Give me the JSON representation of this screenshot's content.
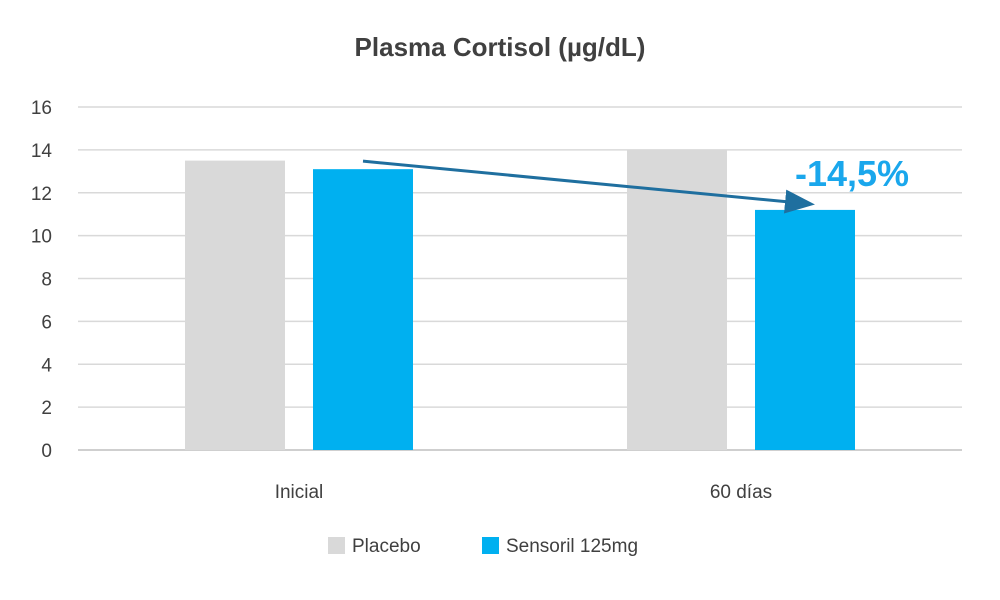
{
  "chart_data": {
    "type": "bar",
    "title": "Plasma Cortisol (µg/dL)",
    "xlabel": "",
    "ylabel": "",
    "categories": [
      "Inicial",
      "60 días"
    ],
    "series": [
      {
        "name": "Placebo",
        "values": [
          13.5,
          14.0
        ],
        "color": "#d9d9d9"
      },
      {
        "name": "Sensoril 125mg",
        "values": [
          13.1,
          11.2
        ],
        "color": "#00b0f0"
      }
    ],
    "ylim": [
      0,
      16
    ],
    "yticks": [
      0,
      2,
      4,
      6,
      8,
      10,
      12,
      14,
      16
    ],
    "grid": true,
    "legend": "bottom",
    "annotation": {
      "text": "-14,5%",
      "color": "#1aa7ec",
      "arrow_color": "#1f6f9f"
    }
  }
}
